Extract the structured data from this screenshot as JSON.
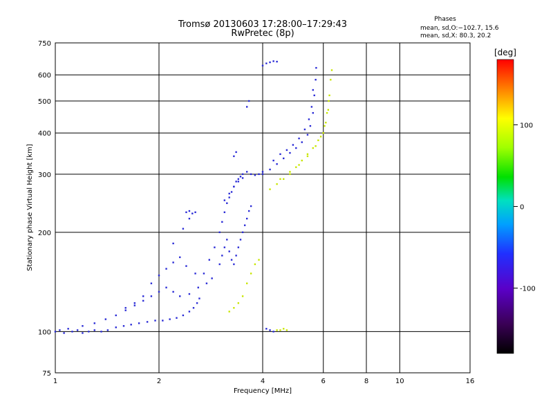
{
  "chart_data": {
    "type": "scatter",
    "title": "Tromsø 20130603 17:28:00–17:29:43",
    "subtitle": "RwPretec (8p)",
    "xlabel": "Frequency [MHz]",
    "ylabel": "Stationary phase Virtual Height [km]",
    "x_scale": "log",
    "y_scale": "log",
    "xlim": [
      1,
      16
    ],
    "ylim": [
      75,
      750
    ],
    "x_ticks": [
      1,
      2,
      4,
      6,
      8,
      10,
      16
    ],
    "y_ticks": [
      75,
      100,
      200,
      300,
      400,
      500,
      600,
      750
    ],
    "grid": true,
    "phase_info": {
      "title": "Phases",
      "line_o": "mean, sd,O:−102.7, 15.6",
      "line_x": "mean, sd,X:  80.3, 20.2"
    },
    "colorbar": {
      "label": "[deg]",
      "range": [
        -180,
        180
      ],
      "ticks": [
        100,
        0,
        -100
      ]
    },
    "point_color": "#2a2bd6",
    "series": [
      {
        "mode": "O",
        "phase_mean": -102.7,
        "phase_sd": 15.6,
        "points": [
          [
            1.0,
            100
          ],
          [
            1.03,
            101
          ],
          [
            1.06,
            99
          ],
          [
            1.09,
            102
          ],
          [
            1.12,
            100
          ],
          [
            1.16,
            101
          ],
          [
            1.2,
            99
          ],
          [
            1.25,
            100
          ],
          [
            1.3,
            101
          ],
          [
            1.36,
            100
          ],
          [
            1.42,
            101
          ],
          [
            1.5,
            103
          ],
          [
            1.58,
            104
          ],
          [
            1.66,
            105
          ],
          [
            1.75,
            106
          ],
          [
            1.85,
            107
          ],
          [
            1.95,
            108
          ],
          [
            2.05,
            108
          ],
          [
            2.15,
            109
          ],
          [
            2.25,
            110
          ],
          [
            2.35,
            112
          ],
          [
            2.45,
            115
          ],
          [
            2.52,
            118
          ],
          [
            2.58,
            122
          ],
          [
            2.62,
            126
          ],
          [
            1.2,
            104
          ],
          [
            1.3,
            106
          ],
          [
            1.4,
            109
          ],
          [
            1.5,
            112
          ],
          [
            1.6,
            116
          ],
          [
            1.7,
            120
          ],
          [
            1.8,
            124
          ],
          [
            1.9,
            128
          ],
          [
            2.0,
            132
          ],
          [
            2.1,
            136
          ],
          [
            2.2,
            132
          ],
          [
            2.3,
            128
          ],
          [
            2.45,
            130
          ],
          [
            2.6,
            136
          ],
          [
            2.75,
            140
          ],
          [
            2.85,
            145
          ],
          [
            1.9,
            140
          ],
          [
            2.0,
            148
          ],
          [
            2.1,
            155
          ],
          [
            2.2,
            162
          ],
          [
            2.3,
            168
          ],
          [
            2.4,
            158
          ],
          [
            2.55,
            150
          ],
          [
            2.2,
            185
          ],
          [
            2.35,
            205
          ],
          [
            2.45,
            220
          ],
          [
            2.55,
            230
          ],
          [
            2.7,
            150
          ],
          [
            2.8,
            165
          ],
          [
            2.9,
            180
          ],
          [
            3.0,
            200
          ],
          [
            3.05,
            215
          ],
          [
            3.1,
            230
          ],
          [
            3.15,
            245
          ],
          [
            3.2,
            255
          ],
          [
            3.25,
            265
          ],
          [
            3.3,
            275
          ],
          [
            3.35,
            285
          ],
          [
            3.4,
            290
          ],
          [
            3.45,
            295
          ],
          [
            3.5,
            300
          ],
          [
            3.6,
            305
          ],
          [
            3.7,
            300
          ],
          [
            3.8,
            298
          ],
          [
            3.9,
            300
          ],
          [
            4.0,
            305
          ],
          [
            3.0,
            160
          ],
          [
            3.05,
            170
          ],
          [
            3.1,
            180
          ],
          [
            3.15,
            190
          ],
          [
            3.2,
            175
          ],
          [
            3.25,
            165
          ],
          [
            3.3,
            160
          ],
          [
            3.35,
            170
          ],
          [
            3.4,
            180
          ],
          [
            3.45,
            190
          ],
          [
            3.5,
            200
          ],
          [
            3.55,
            210
          ],
          [
            3.6,
            220
          ],
          [
            3.65,
            232
          ],
          [
            3.7,
            240
          ],
          [
            3.1,
            250
          ],
          [
            3.2,
            262
          ],
          [
            3.3,
            275
          ],
          [
            3.4,
            285
          ],
          [
            3.5,
            292
          ],
          [
            4.0,
            300
          ],
          [
            4.2,
            310
          ],
          [
            4.4,
            322
          ],
          [
            4.6,
            335
          ],
          [
            4.8,
            348
          ],
          [
            5.0,
            360
          ],
          [
            5.2,
            375
          ],
          [
            5.4,
            395
          ],
          [
            5.5,
            420
          ],
          [
            5.6,
            460
          ],
          [
            5.65,
            520
          ],
          [
            5.7,
            580
          ],
          [
            5.72,
            630
          ],
          [
            4.3,
            330
          ],
          [
            4.5,
            345
          ],
          [
            4.7,
            355
          ],
          [
            4.9,
            368
          ],
          [
            5.1,
            385
          ],
          [
            5.3,
            410
          ],
          [
            5.45,
            440
          ],
          [
            5.55,
            480
          ],
          [
            5.6,
            540
          ],
          [
            4.0,
            640
          ],
          [
            4.1,
            650
          ],
          [
            4.2,
            655
          ],
          [
            4.3,
            660
          ],
          [
            4.4,
            658
          ],
          [
            3.3,
            340
          ],
          [
            3.35,
            350
          ],
          [
            3.6,
            480
          ],
          [
            3.65,
            500
          ],
          [
            4.1,
            102
          ],
          [
            4.2,
            101
          ],
          [
            4.3,
            100
          ],
          [
            1.6,
            118
          ],
          [
            1.7,
            122
          ],
          [
            1.8,
            128
          ],
          [
            2.4,
            230
          ],
          [
            2.45,
            232
          ],
          [
            2.5,
            228
          ]
        ]
      },
      {
        "mode": "X",
        "phase_mean": 80.3,
        "phase_sd": 20.2,
        "points": [
          [
            4.2,
            270
          ],
          [
            4.4,
            280
          ],
          [
            4.6,
            290
          ],
          [
            4.8,
            300
          ],
          [
            5.0,
            315
          ],
          [
            5.2,
            330
          ],
          [
            5.4,
            345
          ],
          [
            5.6,
            360
          ],
          [
            5.8,
            380
          ],
          [
            6.0,
            400
          ],
          [
            6.1,
            430
          ],
          [
            6.2,
            470
          ],
          [
            6.25,
            520
          ],
          [
            6.3,
            580
          ],
          [
            6.35,
            620
          ],
          [
            4.5,
            290
          ],
          [
            4.8,
            305
          ],
          [
            5.1,
            320
          ],
          [
            5.4,
            340
          ],
          [
            5.7,
            365
          ],
          [
            5.9,
            390
          ],
          [
            6.05,
            420
          ],
          [
            6.15,
            460
          ],
          [
            6.22,
            500
          ],
          [
            3.6,
            140
          ],
          [
            3.7,
            150
          ],
          [
            3.8,
            160
          ],
          [
            3.9,
            165
          ],
          [
            3.2,
            115
          ],
          [
            3.3,
            118
          ],
          [
            3.4,
            122
          ],
          [
            3.5,
            128
          ],
          [
            4.4,
            101
          ],
          [
            4.5,
            101
          ],
          [
            4.6,
            102
          ],
          [
            4.7,
            101
          ]
        ]
      }
    ]
  }
}
